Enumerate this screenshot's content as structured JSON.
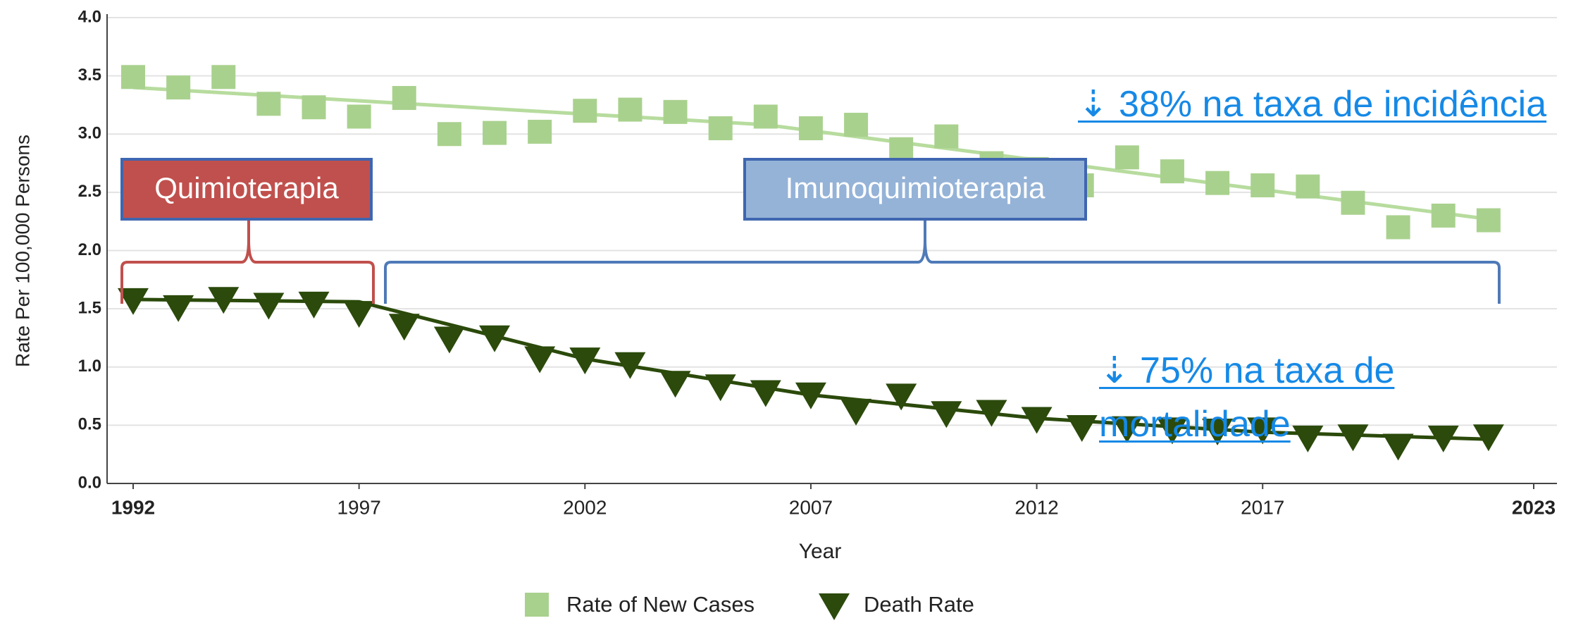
{
  "chart_data": {
    "type": "scatter",
    "xlabel": "Year",
    "ylabel": "Rate Per 100,000 Persons",
    "xlim": [
      1992,
      2023
    ],
    "xticks": [
      1992,
      1997,
      2002,
      2007,
      2012,
      2017,
      2023
    ],
    "ylim": [
      0,
      4
    ],
    "yticks": [
      {
        "value": 0,
        "label": "0.0"
      },
      {
        "value": 0.5,
        "label": "0.5"
      },
      {
        "value": 1,
        "label": "1.0"
      },
      {
        "value": 1.5,
        "label": "1.5"
      },
      {
        "value": 2,
        "label": "2.0"
      },
      {
        "value": 2.5,
        "label": "2.5"
      },
      {
        "value": 3,
        "label": "3.0"
      },
      {
        "value": 3.5,
        "label": "3.5"
      },
      {
        "value": 4,
        "label": "4.0"
      }
    ],
    "grid": true,
    "x": [
      1992,
      1993,
      1994,
      1995,
      1996,
      1997,
      1998,
      1999,
      2000,
      2001,
      2002,
      2003,
      2004,
      2005,
      2006,
      2007,
      2008,
      2009,
      2010,
      2011,
      2012,
      2013,
      2014,
      2015,
      2016,
      2017,
      2018,
      2019,
      2020,
      2021,
      2022
    ],
    "series": [
      {
        "name": "Rate of New Cases",
        "color": "#a9d18e",
        "marker": "square",
        "values": [
          3.49,
          3.4,
          3.49,
          3.26,
          3.23,
          3.15,
          3.31,
          3.0,
          3.01,
          3.02,
          3.2,
          3.21,
          3.19,
          3.05,
          3.15,
          3.05,
          3.08,
          2.87,
          2.98,
          2.75,
          2.7,
          2.56,
          2.8,
          2.68,
          2.58,
          2.56,
          2.55,
          2.41,
          2.2,
          2.3,
          2.26
        ]
      },
      {
        "name": "Death Rate",
        "color": "#2b4a0b",
        "marker": "triangle-down",
        "values": [
          1.58,
          1.52,
          1.59,
          1.54,
          1.55,
          1.47,
          1.36,
          1.25,
          1.26,
          1.08,
          1.07,
          1.03,
          0.87,
          0.84,
          0.79,
          0.77,
          0.63,
          0.76,
          0.61,
          0.62,
          0.56,
          0.49,
          0.48,
          0.47,
          0.46,
          0.47,
          0.4,
          0.41,
          0.33,
          0.4,
          0.41
        ]
      }
    ],
    "trends": [
      {
        "color": "#b7dc9e",
        "x": [
          1992,
          2006,
          2022
        ],
        "values": [
          3.4,
          3.08,
          2.27
        ]
      },
      {
        "color": "#2b4a0b",
        "x": [
          1992,
          1997,
          2002,
          2007,
          2012,
          2017,
          2022
        ],
        "values": [
          1.58,
          1.56,
          1.07,
          0.76,
          0.56,
          0.44,
          0.38
        ]
      }
    ],
    "annotations": [
      "Quimioterapia",
      "Imunoquimioterapia",
      "⇣ 38% na taxa de incidência",
      "⇣ 75% na taxa de mortalidade"
    ]
  }
}
